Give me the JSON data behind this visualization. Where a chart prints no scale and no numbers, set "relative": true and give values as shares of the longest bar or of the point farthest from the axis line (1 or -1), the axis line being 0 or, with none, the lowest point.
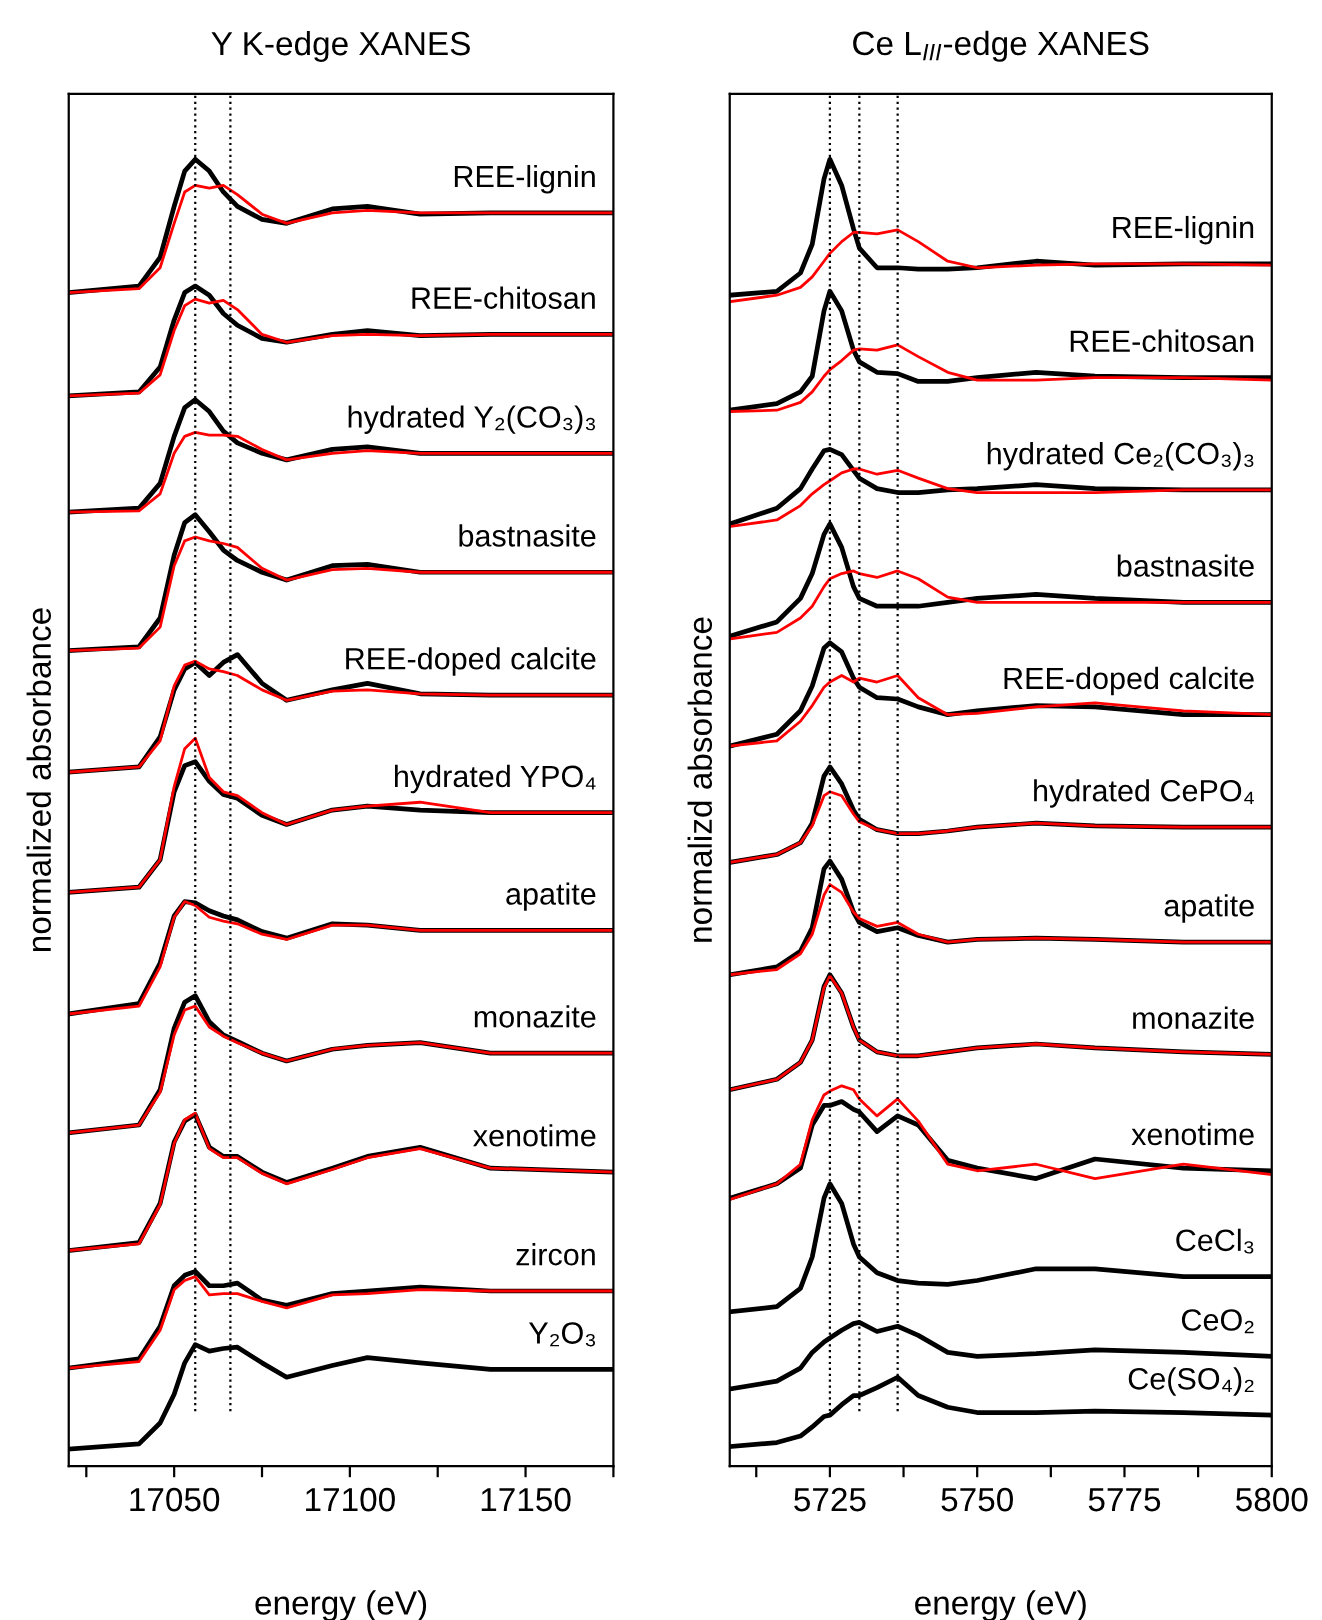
{
  "chart_data": [
    {
      "type": "line",
      "title": "Y K-edge XANES",
      "xlabel": "energy (eV)",
      "ylabel": "normalized absorbance",
      "relative": true,
      "tick_labels": "x",
      "grid": false,
      "legend": false,
      "line_style": "solid",
      "marker": "none",
      "x": [
        17020,
        17040,
        17046,
        17050,
        17053,
        17056,
        17060,
        17064,
        17068,
        17075,
        17082,
        17095,
        17105,
        17120,
        17140,
        17175
      ],
      "xlim": [
        17020,
        17175
      ],
      "xticks": [
        {
          "value": 17025,
          "label": null
        },
        17050,
        {
          "value": 17075,
          "label": null
        },
        17100,
        {
          "value": 17125,
          "label": null
        },
        17150,
        {
          "value": 17175,
          "label": null
        }
      ],
      "ref_lines": [
        {
          "axis": "x",
          "value": 17056,
          "label": null,
          "color": "#000000",
          "line_style": "dotted"
        },
        {
          "axis": "x",
          "value": 17066,
          "label": null,
          "color": "#000000",
          "line_style": "dotted"
        }
      ],
      "series": [
        {
          "name": "REE-lignin",
          "color": "#000000",
          "values": [
            0.898,
            0.903,
            0.925,
            0.964,
            0.991,
            1,
            0.991,
            0.975,
            0.964,
            0.954,
            0.951,
            0.962,
            0.964,
            0.958,
            0.959,
            0.959
          ]
        },
        {
          "color": "#ff0000",
          "values": [
            0.898,
            0.901,
            0.917,
            0.951,
            0.975,
            0.98,
            0.978,
            0.98,
            0.973,
            0.958,
            0.951,
            0.959,
            0.961,
            0.959,
            0.959,
            0.959
          ]
        },
        {
          "name": "REE-chitosan",
          "color": "#000000",
          "values": [
            0.819,
            0.822,
            0.841,
            0.877,
            0.898,
            0.903,
            0.896,
            0.882,
            0.873,
            0.863,
            0.86,
            0.866,
            0.869,
            0.865,
            0.866,
            0.866
          ]
        },
        {
          "color": "#ff0000",
          "values": [
            0.819,
            0.821,
            0.835,
            0.869,
            0.888,
            0.893,
            0.89,
            0.892,
            0.885,
            0.866,
            0.86,
            0.865,
            0.866,
            0.865,
            0.866,
            0.866
          ]
        },
        {
          "name": "hydrated Y₂(CO₃)₃",
          "color": "#000000",
          "values": [
            0.73,
            0.733,
            0.752,
            0.788,
            0.81,
            0.816,
            0.807,
            0.792,
            0.783,
            0.775,
            0.77,
            0.778,
            0.78,
            0.775,
            0.775,
            0.775
          ]
        },
        {
          "color": "#ff0000",
          "values": [
            0.73,
            0.731,
            0.744,
            0.775,
            0.788,
            0.791,
            0.789,
            0.789,
            0.788,
            0.778,
            0.77,
            0.775,
            0.777,
            0.775,
            0.775,
            0.775
          ]
        },
        {
          "name": "bastnasite",
          "color": "#000000",
          "values": [
            0.624,
            0.627,
            0.649,
            0.697,
            0.722,
            0.728,
            0.715,
            0.701,
            0.693,
            0.684,
            0.678,
            0.689,
            0.69,
            0.684,
            0.684,
            0.684
          ]
        },
        {
          "color": "#ff0000",
          "values": [
            0.624,
            0.626,
            0.642,
            0.689,
            0.708,
            0.711,
            0.708,
            0.706,
            0.703,
            0.687,
            0.678,
            0.686,
            0.687,
            0.684,
            0.684,
            0.684
          ]
        },
        {
          "name": "REE-doped calcite",
          "color": "#000000",
          "values": [
            0.531,
            0.535,
            0.558,
            0.594,
            0.61,
            0.615,
            0.605,
            0.615,
            0.621,
            0.599,
            0.586,
            0.594,
            0.599,
            0.591,
            0.59,
            0.59
          ]
        },
        {
          "color": "#ff0000",
          "values": [
            0.531,
            0.535,
            0.555,
            0.597,
            0.613,
            0.616,
            0.61,
            0.608,
            0.605,
            0.594,
            0.586,
            0.593,
            0.594,
            0.591,
            0.59,
            0.59
          ]
        },
        {
          "name": "hydrated YPO₄",
          "color": "#000000",
          "values": [
            0.439,
            0.443,
            0.464,
            0.516,
            0.536,
            0.539,
            0.524,
            0.514,
            0.511,
            0.498,
            0.491,
            0.502,
            0.505,
            0.502,
            0.5,
            0.5
          ]
        },
        {
          "color": "#ff0000",
          "values": [
            0.439,
            0.443,
            0.464,
            0.52,
            0.549,
            0.557,
            0.527,
            0.516,
            0.513,
            0.5,
            0.491,
            0.502,
            0.505,
            0.508,
            0.5,
            0.5
          ]
        },
        {
          "name": "apatite",
          "color": "#000000",
          "values": [
            0.346,
            0.354,
            0.385,
            0.421,
            0.432,
            0.431,
            0.425,
            0.421,
            0.418,
            0.409,
            0.404,
            0.415,
            0.414,
            0.41,
            0.41,
            0.41
          ]
        },
        {
          "color": "#ff0000",
          "values": [
            0.346,
            0.352,
            0.382,
            0.42,
            0.432,
            0.429,
            0.42,
            0.417,
            0.415,
            0.407,
            0.403,
            0.414,
            0.414,
            0.41,
            0.41,
            0.41
          ]
        },
        {
          "name": "monazite",
          "color": "#000000",
          "values": [
            0.255,
            0.261,
            0.288,
            0.335,
            0.355,
            0.36,
            0.34,
            0.33,
            0.325,
            0.316,
            0.31,
            0.319,
            0.322,
            0.324,
            0.316,
            0.316
          ]
        },
        {
          "color": "#ff0000",
          "values": [
            0.255,
            0.261,
            0.286,
            0.33,
            0.349,
            0.352,
            0.336,
            0.329,
            0.324,
            0.316,
            0.31,
            0.319,
            0.322,
            0.324,
            0.316,
            0.316
          ]
        },
        {
          "name": "xenotime",
          "color": "#000000",
          "values": [
            0.165,
            0.171,
            0.201,
            0.248,
            0.264,
            0.269,
            0.244,
            0.237,
            0.237,
            0.225,
            0.217,
            0.228,
            0.237,
            0.244,
            0.228,
            0.225
          ]
        },
        {
          "color": "#ff0000",
          "values": [
            0.165,
            0.17,
            0.2,
            0.247,
            0.265,
            0.27,
            0.243,
            0.236,
            0.236,
            0.224,
            0.216,
            0.227,
            0.236,
            0.243,
            0.228,
            0.225
          ]
        },
        {
          "name": "zircon",
          "color": "#000000",
          "values": [
            0.075,
            0.082,
            0.107,
            0.138,
            0.146,
            0.149,
            0.138,
            0.138,
            0.14,
            0.127,
            0.123,
            0.132,
            0.134,
            0.137,
            0.134,
            0.134
          ]
        },
        {
          "color": "#ff0000",
          "values": [
            0.075,
            0.08,
            0.104,
            0.135,
            0.142,
            0.145,
            0.131,
            0.132,
            0.132,
            0.126,
            0.121,
            0.131,
            0.132,
            0.135,
            0.134,
            0.134
          ]
        },
        {
          "name": "Y₂O₃",
          "color": "#000000",
          "values": [
            0.013,
            0.017,
            0.033,
            0.055,
            0.079,
            0.093,
            0.088,
            0.09,
            0.091,
            0.079,
            0.068,
            0.077,
            0.083,
            0.079,
            0.074,
            0.074
          ]
        }
      ]
    },
    {
      "type": "line",
      "title": "Ce L$_{III}$-edge XANES",
      "xlabel": "energy (eV)",
      "ylabel": "normalizd absorbance",
      "relative": true,
      "tick_labels": "x",
      "grid": false,
      "legend": false,
      "line_style": "solid",
      "marker": "none",
      "x": [
        5708,
        5716,
        5720,
        5722,
        5724,
        5725,
        5727,
        5729,
        5730,
        5733,
        5736.5,
        5740,
        5745,
        5750,
        5760,
        5770,
        5785,
        5800
      ],
      "xlim": [
        5708,
        5800
      ],
      "xticks": [
        {
          "value": 5712.5,
          "label": null
        },
        5725,
        {
          "value": 5737.5,
          "label": null
        },
        5750,
        {
          "value": 5762.5,
          "label": null
        },
        5775,
        {
          "value": 5787.5,
          "label": null
        },
        5800
      ],
      "ref_lines": [
        {
          "axis": "x",
          "value": 5725,
          "label": null,
          "color": "#000000",
          "line_style": "dotted"
        },
        {
          "axis": "x",
          "value": 5730,
          "label": null,
          "color": "#000000",
          "line_style": "dotted"
        },
        {
          "axis": "x",
          "value": 5736.5,
          "label": null,
          "color": "#000000",
          "line_style": "dotted"
        }
      ],
      "series": [
        {
          "name": "REE-lignin",
          "color": "#000000",
          "values": [
            0.896,
            0.899,
            0.913,
            0.935,
            0.985,
            1,
            0.98,
            0.947,
            0.932,
            0.917,
            0.917,
            0.916,
            0.916,
            0.917,
            0.922,
            0.919,
            0.92,
            0.92
          ]
        },
        {
          "color": "#ff0000",
          "values": [
            0.891,
            0.896,
            0.902,
            0.91,
            0.922,
            0.928,
            0.937,
            0.944,
            0.944,
            0.943,
            0.946,
            0.937,
            0.922,
            0.917,
            0.919,
            0.92,
            0.92,
            0.919
          ]
        },
        {
          "name": "REE-chitosan",
          "color": "#000000",
          "values": [
            0.808,
            0.813,
            0.822,
            0.834,
            0.884,
            0.899,
            0.884,
            0.854,
            0.845,
            0.837,
            0.836,
            0.83,
            0.83,
            0.833,
            0.837,
            0.834,
            0.833,
            0.833
          ]
        },
        {
          "color": "#ff0000",
          "values": [
            0.807,
            0.808,
            0.814,
            0.822,
            0.834,
            0.839,
            0.846,
            0.854,
            0.855,
            0.854,
            0.858,
            0.849,
            0.837,
            0.831,
            0.831,
            0.833,
            0.833,
            0.831
          ]
        },
        {
          "name": "hydrated Ce₂(CO₃)₃",
          "color": "#000000",
          "values": [
            0.721,
            0.733,
            0.748,
            0.763,
            0.777,
            0.778,
            0.774,
            0.762,
            0.756,
            0.748,
            0.745,
            0.745,
            0.747,
            0.748,
            0.751,
            0.748,
            0.747,
            0.747
          ]
        },
        {
          "color": "#ff0000",
          "values": [
            0.719,
            0.724,
            0.735,
            0.744,
            0.751,
            0.754,
            0.76,
            0.763,
            0.763,
            0.759,
            0.762,
            0.756,
            0.748,
            0.745,
            0.745,
            0.745,
            0.747,
            0.747
          ]
        },
        {
          "name": "bastnasite",
          "color": "#000000",
          "values": [
            0.635,
            0.646,
            0.664,
            0.683,
            0.713,
            0.721,
            0.703,
            0.673,
            0.664,
            0.658,
            0.658,
            0.658,
            0.661,
            0.664,
            0.667,
            0.664,
            0.661,
            0.661
          ]
        },
        {
          "color": "#ff0000",
          "values": [
            0.633,
            0.638,
            0.649,
            0.658,
            0.673,
            0.679,
            0.683,
            0.685,
            0.683,
            0.68,
            0.685,
            0.679,
            0.665,
            0.661,
            0.661,
            0.661,
            0.661,
            0.661
          ]
        },
        {
          "name": "REE-doped calcite",
          "color": "#000000",
          "values": [
            0.551,
            0.56,
            0.578,
            0.597,
            0.626,
            0.63,
            0.623,
            0.603,
            0.596,
            0.588,
            0.587,
            0.581,
            0.575,
            0.578,
            0.582,
            0.581,
            0.575,
            0.575
          ]
        },
        {
          "color": "#ff0000",
          "values": [
            0.551,
            0.555,
            0.57,
            0.582,
            0.596,
            0.6,
            0.605,
            0.6,
            0.603,
            0.6,
            0.605,
            0.588,
            0.575,
            0.576,
            0.581,
            0.584,
            0.578,
            0.575
          ]
        },
        {
          "name": "hydrated CePO₄",
          "color": "#000000",
          "values": [
            0.462,
            0.468,
            0.477,
            0.492,
            0.528,
            0.535,
            0.522,
            0.502,
            0.495,
            0.487,
            0.484,
            0.484,
            0.486,
            0.489,
            0.492,
            0.49,
            0.489,
            0.489
          ]
        },
        {
          "color": "#ff0000",
          "values": [
            0.462,
            0.468,
            0.477,
            0.49,
            0.513,
            0.516,
            0.513,
            0.499,
            0.493,
            0.487,
            0.484,
            0.484,
            0.486,
            0.489,
            0.492,
            0.49,
            0.489,
            0.489
          ]
        },
        {
          "name": "apatite",
          "color": "#000000",
          "values": [
            0.376,
            0.382,
            0.394,
            0.412,
            0.457,
            0.463,
            0.449,
            0.424,
            0.416,
            0.409,
            0.412,
            0.406,
            0.401,
            0.403,
            0.404,
            0.403,
            0.401,
            0.401
          ]
        },
        {
          "color": "#ff0000",
          "values": [
            0.376,
            0.38,
            0.392,
            0.407,
            0.437,
            0.445,
            0.439,
            0.424,
            0.419,
            0.413,
            0.416,
            0.407,
            0.401,
            0.403,
            0.404,
            0.403,
            0.401,
            0.401
          ]
        },
        {
          "name": "monazite",
          "color": "#000000",
          "values": [
            0.288,
            0.296,
            0.309,
            0.326,
            0.367,
            0.376,
            0.362,
            0.336,
            0.326,
            0.317,
            0.314,
            0.314,
            0.317,
            0.32,
            0.323,
            0.32,
            0.317,
            0.315
          ]
        },
        {
          "color": "#ff0000",
          "values": [
            0.288,
            0.296,
            0.309,
            0.326,
            0.366,
            0.375,
            0.362,
            0.336,
            0.326,
            0.317,
            0.314,
            0.314,
            0.317,
            0.32,
            0.323,
            0.32,
            0.317,
            0.315
          ]
        },
        {
          "name": "xenotime",
          "color": "#000000",
          "values": [
            0.205,
            0.216,
            0.228,
            0.261,
            0.276,
            0.276,
            0.279,
            0.273,
            0.271,
            0.256,
            0.268,
            0.261,
            0.234,
            0.228,
            0.22,
            0.235,
            0.228,
            0.226
          ]
        },
        {
          "color": "#ff0000",
          "values": [
            0.204,
            0.216,
            0.231,
            0.265,
            0.284,
            0.287,
            0.291,
            0.288,
            0.281,
            0.268,
            0.281,
            0.264,
            0.231,
            0.226,
            0.231,
            0.22,
            0.231,
            0.223
          ]
        },
        {
          "name": "CeCl₃",
          "color": "#000000",
          "values": [
            0.118,
            0.122,
            0.136,
            0.16,
            0.205,
            0.216,
            0.201,
            0.17,
            0.16,
            0.148,
            0.142,
            0.14,
            0.139,
            0.142,
            0.151,
            0.151,
            0.145,
            0.145
          ]
        },
        {
          "name": "CeO₂",
          "color": "#000000",
          "values": [
            0.059,
            0.065,
            0.075,
            0.087,
            0.095,
            0.098,
            0.104,
            0.109,
            0.11,
            0.103,
            0.107,
            0.1,
            0.087,
            0.084,
            0.086,
            0.089,
            0.087,
            0.084
          ]
        },
        {
          "name": "Ce(SO₄)₂",
          "color": "#000000",
          "values": [
            0.015,
            0.018,
            0.023,
            0.03,
            0.038,
            0.039,
            0.047,
            0.054,
            0.054,
            0.06,
            0.068,
            0.054,
            0.045,
            0.041,
            0.041,
            0.042,
            0.041,
            0.039
          ]
        }
      ]
    }
  ]
}
